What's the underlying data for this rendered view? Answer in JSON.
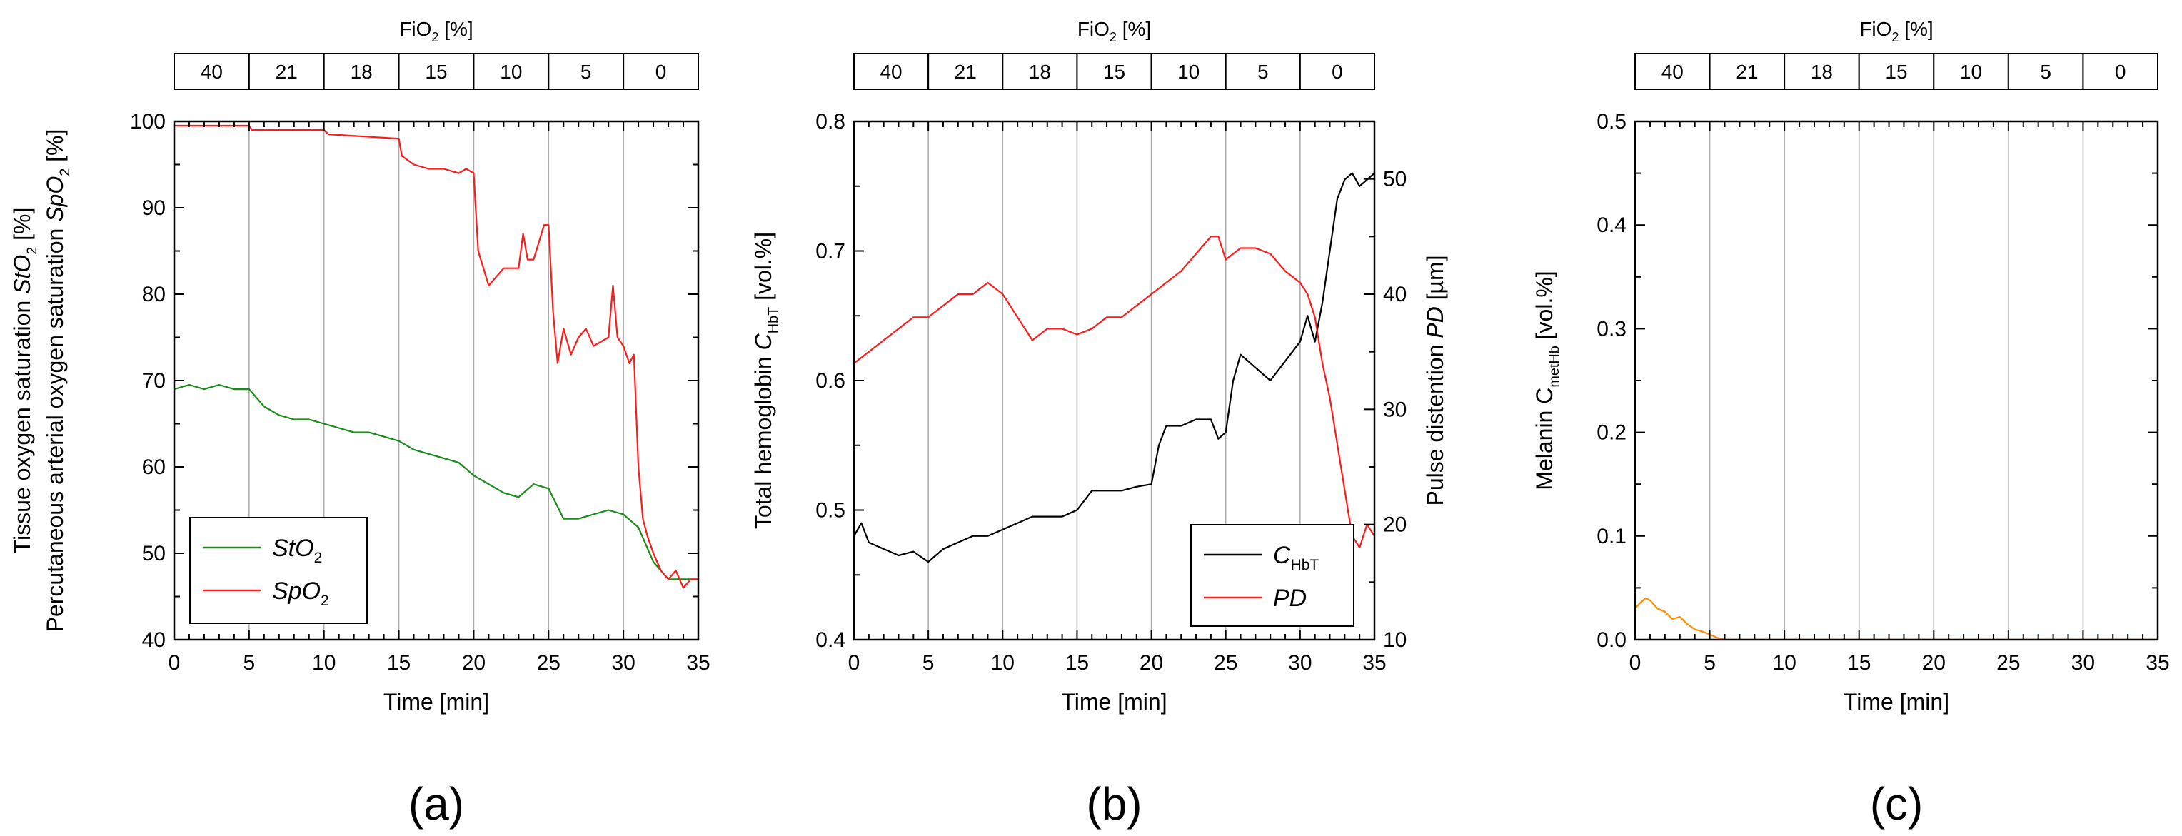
{
  "fio2": {
    "title": "FiO",
    "title_sub": "2",
    "title_unit": " [%]",
    "levels": [
      "40",
      "21",
      "18",
      "15",
      "10",
      "5",
      "0"
    ],
    "boundaries_min": [
      0,
      5,
      10,
      15,
      20,
      25,
      30,
      35
    ]
  },
  "chart_data": [
    {
      "id": "a",
      "type": "line",
      "panel_label": "(a)",
      "xlabel": "Time [min]",
      "xlim": [
        0,
        35
      ],
      "xticks": [
        "0",
        "5",
        "10",
        "15",
        "20",
        "25",
        "30",
        "35"
      ],
      "xtick_values": [
        0,
        5,
        10,
        15,
        20,
        25,
        30,
        35
      ],
      "ylim": [
        40,
        100
      ],
      "yticks": [
        "40",
        "50",
        "60",
        "70",
        "80",
        "90",
        "100"
      ],
      "ytick_values": [
        40,
        50,
        60,
        70,
        80,
        90,
        100
      ],
      "ylabel_line1": {
        "pre": "Tissue oxygen saturation ",
        "var": "StO",
        "sub": "2",
        "post": " [%]"
      },
      "ylabel_line2": {
        "pre": "Percutaneous arterial oxygen saturation ",
        "var": "SpO",
        "sub": "2",
        "post": " [%]"
      },
      "legend": [
        {
          "var": "StO",
          "sub": "2",
          "color": "#1a8a1a"
        },
        {
          "var": "SpO",
          "sub": "2",
          "color": "#ff1a1a"
        }
      ],
      "series": [
        {
          "name": "StO2",
          "color": "#1a8a1a",
          "axis": "left",
          "x": [
            0,
            1,
            2,
            3,
            4,
            5,
            6,
            7,
            8,
            9,
            10,
            11,
            12,
            13,
            14,
            15,
            16,
            17,
            18,
            19,
            20,
            21,
            22,
            23,
            24,
            25,
            26,
            27,
            28,
            29,
            30,
            31,
            32,
            33,
            34,
            35
          ],
          "y": [
            69,
            69.5,
            69,
            69.5,
            69,
            69,
            67,
            66,
            65.5,
            65.5,
            65,
            64.5,
            64,
            64,
            63.5,
            63,
            62,
            61.5,
            61,
            60.5,
            59,
            58,
            57,
            56.5,
            58,
            57.5,
            54,
            54,
            54.5,
            55,
            54.5,
            53,
            49,
            47,
            47,
            47
          ]
        },
        {
          "name": "SpO2",
          "color": "#ff1a1a",
          "axis": "left",
          "x": [
            0,
            5,
            5.2,
            10,
            10.3,
            15,
            15.2,
            16,
            17,
            18,
            19,
            19.5,
            20,
            20.3,
            21,
            21.5,
            22,
            23,
            23.3,
            23.6,
            24,
            24.7,
            25,
            25.3,
            25.6,
            26,
            26.5,
            27,
            27.5,
            28,
            29,
            29.3,
            29.6,
            30,
            30.4,
            30.7,
            31,
            31.3,
            31.6,
            32,
            32.5,
            33,
            33.5,
            34,
            34.5,
            35
          ],
          "y": [
            99.5,
            99.5,
            99,
            99,
            98.5,
            98,
            96,
            95,
            94.5,
            94.5,
            94,
            94.5,
            94,
            85,
            81,
            82,
            83,
            83,
            87,
            84,
            84,
            88,
            88,
            78,
            72,
            76,
            73,
            75,
            76,
            74,
            75,
            81,
            75,
            74,
            72,
            73,
            60,
            54,
            52,
            50,
            48,
            47,
            48,
            46,
            47,
            47
          ]
        }
      ]
    },
    {
      "id": "b",
      "type": "line",
      "panel_label": "(b)",
      "xlabel": "Time [min]",
      "xlim": [
        0,
        35
      ],
      "xticks": [
        "0",
        "5",
        "10",
        "15",
        "20",
        "25",
        "30",
        "35"
      ],
      "xtick_values": [
        0,
        5,
        10,
        15,
        20,
        25,
        30,
        35
      ],
      "ylim": [
        0.4,
        0.8
      ],
      "yticks": [
        "0.4",
        "0.5",
        "0.6",
        "0.7",
        "0.8"
      ],
      "ytick_values": [
        0.4,
        0.5,
        0.6,
        0.7,
        0.8
      ],
      "y2lim": [
        10,
        55
      ],
      "y2ticks": [
        "10",
        "20",
        "30",
        "40",
        "50"
      ],
      "y2tick_values": [
        10,
        20,
        30,
        40,
        50
      ],
      "ylabel": {
        "pre": "Total hemoglobin ",
        "var": "C",
        "sub": "HbT",
        "post": " [vol.%]"
      },
      "y2label": {
        "pre": "Pulse distention ",
        "var": "PD",
        "sub": "",
        "post": " [µm]"
      },
      "legend": [
        {
          "var": "C",
          "sub": "HbT",
          "color": "#000000"
        },
        {
          "var": "PD",
          "sub": "",
          "color": "#ff1a1a"
        }
      ],
      "series": [
        {
          "name": "C_HbT",
          "color": "#000000",
          "axis": "left",
          "x": [
            0,
            0.5,
            1,
            2,
            3,
            4,
            5,
            6,
            7,
            8,
            9,
            10,
            11,
            12,
            13,
            14,
            15,
            16,
            17,
            18,
            19,
            20,
            20.5,
            21,
            22,
            23,
            24,
            24.5,
            25,
            25.5,
            26,
            27,
            28,
            29,
            30,
            30.5,
            31,
            31.5,
            32,
            32.5,
            33,
            33.5,
            34,
            35
          ],
          "y": [
            0.48,
            0.49,
            0.475,
            0.47,
            0.465,
            0.468,
            0.46,
            0.47,
            0.475,
            0.48,
            0.48,
            0.485,
            0.49,
            0.495,
            0.495,
            0.495,
            0.5,
            0.515,
            0.515,
            0.515,
            0.518,
            0.52,
            0.55,
            0.565,
            0.565,
            0.57,
            0.57,
            0.555,
            0.56,
            0.6,
            0.62,
            0.61,
            0.6,
            0.615,
            0.63,
            0.65,
            0.63,
            0.66,
            0.7,
            0.74,
            0.755,
            0.76,
            0.75,
            0.76
          ]
        },
        {
          "name": "PD",
          "color": "#ff1a1a",
          "axis": "right",
          "x": [
            0,
            1,
            2,
            3,
            4,
            5,
            6,
            7,
            8,
            9,
            10,
            11,
            12,
            13,
            14,
            15,
            16,
            17,
            18,
            19,
            20,
            21,
            22,
            23,
            24,
            24.5,
            25,
            26,
            27,
            28,
            29,
            30,
            30.5,
            31,
            31.5,
            32,
            32.5,
            33,
            33.5,
            34,
            34.5,
            35
          ],
          "y": [
            34,
            35,
            36,
            37,
            38,
            38,
            39,
            40,
            40,
            41,
            40,
            38,
            36,
            37,
            37,
            36.5,
            37,
            38,
            38,
            39,
            40,
            41,
            42,
            43.5,
            45,
            45,
            43,
            44,
            44,
            43.5,
            42,
            41,
            40,
            38,
            34,
            31,
            27,
            23,
            19,
            18,
            20,
            19
          ]
        }
      ]
    },
    {
      "id": "c",
      "type": "line",
      "panel_label": "(c)",
      "xlabel": "Time [min]",
      "xlim": [
        0,
        35
      ],
      "xticks": [
        "0",
        "5",
        "10",
        "15",
        "20",
        "25",
        "30",
        "35"
      ],
      "xtick_values": [
        0,
        5,
        10,
        15,
        20,
        25,
        30,
        35
      ],
      "ylim": [
        0,
        0.5
      ],
      "yticks": [
        "0.0",
        "0.1",
        "0.2",
        "0.3",
        "0.4",
        "0.5"
      ],
      "ytick_values": [
        0,
        0.1,
        0.2,
        0.3,
        0.4,
        0.5
      ],
      "ylabel": {
        "pre": "Melanin ",
        "var": "C",
        "sub": "metHb",
        "post": " [vol.%]",
        "upright": true
      },
      "series": [
        {
          "name": "C_metHb",
          "color": "#ff8c00",
          "axis": "left",
          "x": [
            0,
            0.3,
            0.7,
            1,
            1.5,
            2,
            2.5,
            3,
            3.5,
            4,
            4.5,
            5,
            5.5,
            6,
            35
          ],
          "y": [
            0.03,
            0.035,
            0.04,
            0.038,
            0.03,
            0.027,
            0.02,
            0.022,
            0.015,
            0.01,
            0.008,
            0.005,
            0.002,
            0,
            0
          ]
        }
      ]
    }
  ]
}
